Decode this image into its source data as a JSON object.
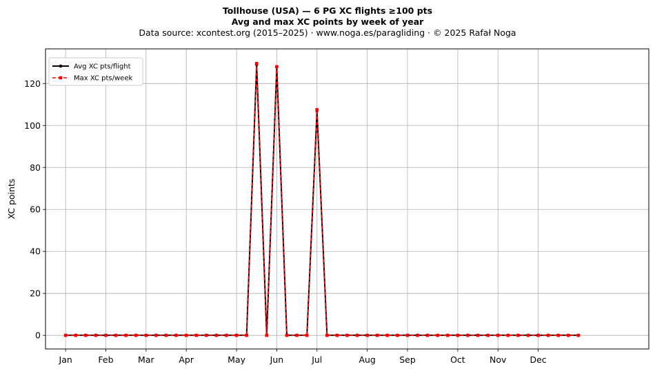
{
  "header": {
    "title_line1": "Tollhouse (USA)  —  6 PG XC flights ≥100 pts",
    "title_line2": "Avg and max XC points by week of year",
    "title_line3": "Data source: xcontest.org (2015–2025)  ·  www.noga.es/paragliding  ·  © 2025 Rafał Noga"
  },
  "chart_data": {
    "type": "line",
    "title": "Avg and max XC points by week of year",
    "xlabel": "",
    "ylabel": "XC points",
    "grid": true,
    "legend_position": "top-left",
    "xlim": [
      -2,
      58
    ],
    "ylim": [
      -6.5,
      136.5
    ],
    "yticks": [
      0,
      20,
      40,
      60,
      80,
      100,
      120
    ],
    "month_ticks": [
      {
        "label": "Jan",
        "x": 0
      },
      {
        "label": "Feb",
        "x": 4
      },
      {
        "label": "Mar",
        "x": 8
      },
      {
        "label": "Apr",
        "x": 12
      },
      {
        "label": "May",
        "x": 17
      },
      {
        "label": "Jun",
        "x": 21
      },
      {
        "label": "Jul",
        "x": 25
      },
      {
        "label": "Aug",
        "x": 30
      },
      {
        "label": "Sep",
        "x": 34
      },
      {
        "label": "Oct",
        "x": 39
      },
      {
        "label": "Nov",
        "x": 43
      },
      {
        "label": "Dec",
        "x": 47
      }
    ],
    "x": [
      0,
      1,
      2,
      3,
      4,
      5,
      6,
      7,
      8,
      9,
      10,
      11,
      12,
      13,
      14,
      15,
      16,
      17,
      18,
      19,
      20,
      21,
      22,
      23,
      24,
      25,
      26,
      27,
      28,
      29,
      30,
      31,
      32,
      33,
      34,
      35,
      36,
      37,
      38,
      39,
      40,
      41,
      42,
      43,
      44,
      45,
      46,
      47,
      48,
      49,
      50,
      51
    ],
    "series": [
      {
        "name": "Avg XC pts/flight",
        "color": "#000000",
        "marker": "circle",
        "linestyle": "solid",
        "values": [
          0,
          0,
          0,
          0,
          0,
          0,
          0,
          0,
          0,
          0,
          0,
          0,
          0,
          0,
          0,
          0,
          0,
          0,
          0,
          129,
          0,
          128,
          0,
          0,
          0,
          107,
          0,
          0,
          0,
          0,
          0,
          0,
          0,
          0,
          0,
          0,
          0,
          0,
          0,
          0,
          0,
          0,
          0,
          0,
          0,
          0,
          0,
          0,
          0,
          0,
          0,
          0
        ]
      },
      {
        "name": "Max XC pts/week",
        "color": "#ff0000",
        "marker": "square",
        "linestyle": "dashed",
        "values": [
          0,
          0,
          0,
          0,
          0,
          0,
          0,
          0,
          0,
          0,
          0,
          0,
          0,
          0,
          0,
          0,
          0,
          0,
          0,
          129.5,
          0,
          128,
          0,
          0,
          0,
          107.5,
          0,
          0,
          0,
          0,
          0,
          0,
          0,
          0,
          0,
          0,
          0,
          0,
          0,
          0,
          0,
          0,
          0,
          0,
          0,
          0,
          0,
          0,
          0,
          0,
          0,
          0
        ]
      }
    ]
  }
}
